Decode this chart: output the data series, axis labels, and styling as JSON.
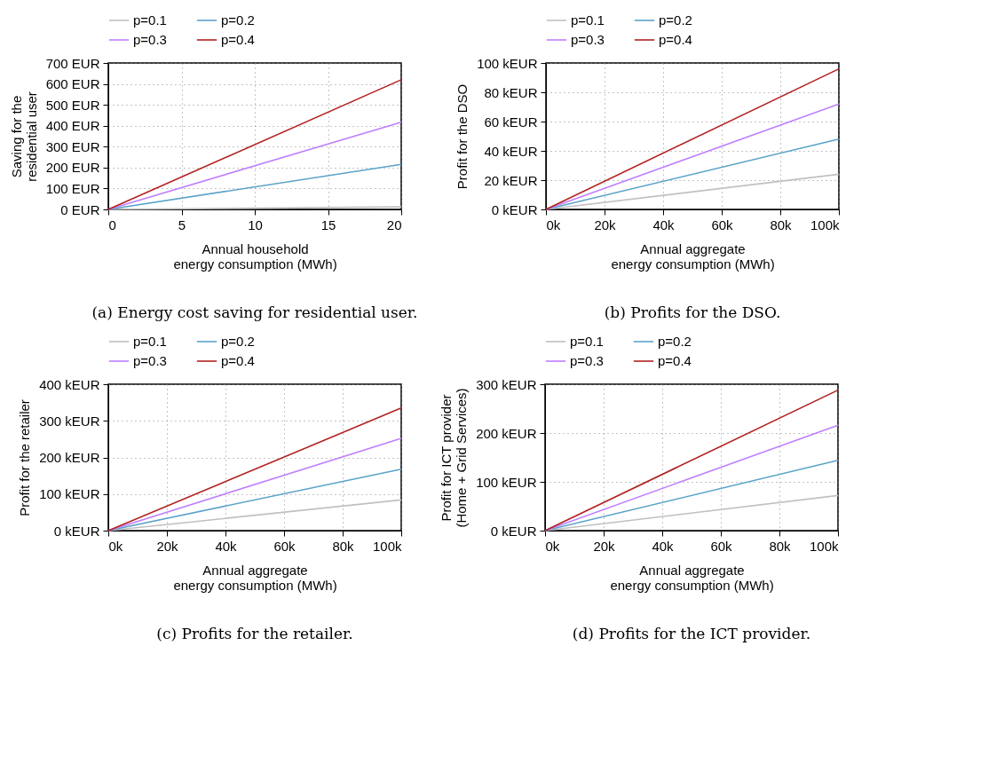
{
  "chart_data": [
    {
      "type": "line",
      "xlabel": "Annual household\nenergy consumption (MWh)",
      "ylabel": "Saving for the\nresidential user",
      "annotations": [
        "(a) Energy cost saving for residential user."
      ],
      "x": [
        0,
        20
      ],
      "xlim": [
        0,
        20
      ],
      "xticks": [
        0,
        5,
        10,
        15,
        20
      ],
      "ylim": [
        0,
        700
      ],
      "yticks": [
        {
          "value": 0,
          "label": "0 EUR"
        },
        {
          "value": 100,
          "label": "100 EUR"
        },
        {
          "value": 200,
          "label": "200 EUR"
        },
        {
          "value": 300,
          "label": "300 EUR"
        },
        {
          "value": 400,
          "label": "400 EUR"
        },
        {
          "value": 500,
          "label": "500 EUR"
        },
        {
          "value": 600,
          "label": "600 EUR"
        },
        {
          "value": 700,
          "label": "700 EUR"
        }
      ],
      "grid": true,
      "legend": "top",
      "line_style": "solid",
      "marker": "none",
      "series": [
        {
          "name": "p=0.1",
          "color": "#c0c0c0",
          "values": [
            0,
            12
          ]
        },
        {
          "name": "p=0.2",
          "color": "#5ba3c8",
          "values": [
            0,
            215
          ]
        },
        {
          "name": "p=0.3",
          "color": "#bf7fff",
          "values": [
            0,
            417
          ]
        },
        {
          "name": "p=0.4",
          "color": "#b22222",
          "values": [
            0,
            620
          ]
        }
      ]
    },
    {
      "type": "line",
      "xlabel": "Annual aggregate\nenergy consumption (MWh)",
      "ylabel": "Profit for the DSO",
      "annotations": [
        "(b) Profits for the DSO."
      ],
      "x": [
        0,
        100000
      ],
      "xlim": [
        0,
        100000
      ],
      "xticks": [
        {
          "value": 0,
          "label": "0k"
        },
        {
          "value": 20000,
          "label": "20k"
        },
        {
          "value": 40000,
          "label": "40k"
        },
        {
          "value": 60000,
          "label": "60k"
        },
        {
          "value": 80000,
          "label": "80k"
        },
        {
          "value": 100000,
          "label": "100k"
        }
      ],
      "ylim": [
        0,
        100
      ],
      "yticks": [
        {
          "value": 0,
          "label": "0 kEUR"
        },
        {
          "value": 20,
          "label": "20 kEUR"
        },
        {
          "value": 40,
          "label": "40 kEUR"
        },
        {
          "value": 60,
          "label": "60 kEUR"
        },
        {
          "value": 80,
          "label": "80 kEUR"
        },
        {
          "value": 100,
          "label": "100 kEUR"
        }
      ],
      "grid": true,
      "legend": "top",
      "line_style": "solid",
      "marker": "none",
      "series": [
        {
          "name": "p=0.1",
          "color": "#c0c0c0",
          "values": [
            0,
            24
          ]
        },
        {
          "name": "p=0.2",
          "color": "#5ba3c8",
          "values": [
            0,
            48
          ]
        },
        {
          "name": "p=0.3",
          "color": "#bf7fff",
          "values": [
            0,
            72
          ]
        },
        {
          "name": "p=0.4",
          "color": "#b22222",
          "values": [
            0,
            96
          ]
        }
      ]
    },
    {
      "type": "line",
      "xlabel": "Annual aggregate\nenergy consumption (MWh)",
      "ylabel": "Profit for the retailer",
      "annotations": [
        "(c) Profits for the retailer."
      ],
      "x": [
        0,
        100000
      ],
      "xlim": [
        0,
        100000
      ],
      "xticks": [
        {
          "value": 0,
          "label": "0k"
        },
        {
          "value": 20000,
          "label": "20k"
        },
        {
          "value": 40000,
          "label": "40k"
        },
        {
          "value": 60000,
          "label": "60k"
        },
        {
          "value": 80000,
          "label": "80k"
        },
        {
          "value": 100000,
          "label": "100k"
        }
      ],
      "ylim": [
        0,
        400
      ],
      "yticks": [
        {
          "value": 0,
          "label": "0 kEUR"
        },
        {
          "value": 100,
          "label": "100 kEUR"
        },
        {
          "value": 200,
          "label": "200 kEUR"
        },
        {
          "value": 300,
          "label": "300 kEUR"
        },
        {
          "value": 400,
          "label": "400 kEUR"
        }
      ],
      "grid": true,
      "legend": "top",
      "line_style": "solid",
      "marker": "none",
      "series": [
        {
          "name": "p=0.1",
          "color": "#c0c0c0",
          "values": [
            0,
            84
          ]
        },
        {
          "name": "p=0.2",
          "color": "#5ba3c8",
          "values": [
            0,
            168
          ]
        },
        {
          "name": "p=0.3",
          "color": "#bf7fff",
          "values": [
            0,
            252
          ]
        },
        {
          "name": "p=0.4",
          "color": "#b22222",
          "values": [
            0,
            335
          ]
        }
      ]
    },
    {
      "type": "line",
      "xlabel": "Annual aggregate\nenergy consumption (MWh)",
      "ylabel": "Profit for ICT provider\n(Home + Grid Services)",
      "annotations": [
        "(d) Profits for the ICT provider."
      ],
      "x": [
        0,
        100000
      ],
      "xlim": [
        0,
        100000
      ],
      "xticks": [
        {
          "value": 0,
          "label": "0k"
        },
        {
          "value": 20000,
          "label": "20k"
        },
        {
          "value": 40000,
          "label": "40k"
        },
        {
          "value": 60000,
          "label": "60k"
        },
        {
          "value": 80000,
          "label": "80k"
        },
        {
          "value": 100000,
          "label": "100k"
        }
      ],
      "ylim": [
        0,
        300
      ],
      "yticks": [
        {
          "value": 0,
          "label": "0 kEUR"
        },
        {
          "value": 100,
          "label": "100 kEUR"
        },
        {
          "value": 200,
          "label": "200 kEUR"
        },
        {
          "value": 300,
          "label": "300 kEUR"
        }
      ],
      "grid": true,
      "legend": "top",
      "line_style": "solid",
      "marker": "none",
      "series": [
        {
          "name": "p=0.1",
          "color": "#c0c0c0",
          "values": [
            0,
            72
          ]
        },
        {
          "name": "p=0.2",
          "color": "#5ba3c8",
          "values": [
            0,
            144
          ]
        },
        {
          "name": "p=0.3",
          "color": "#bf7fff",
          "values": [
            0,
            216
          ]
        },
        {
          "name": "p=0.4",
          "color": "#b22222",
          "values": [
            0,
            288
          ]
        }
      ]
    }
  ]
}
